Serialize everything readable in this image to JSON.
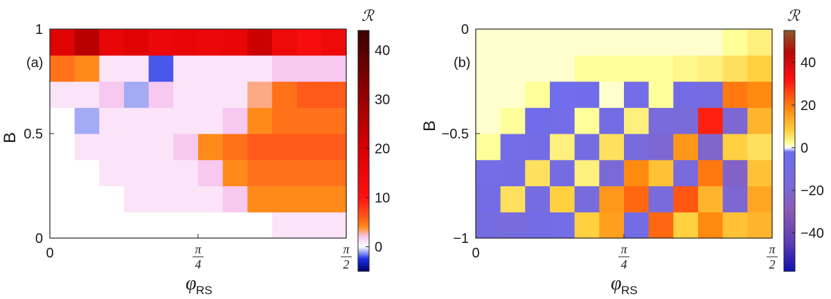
{
  "chart_data": [
    {
      "type": "heatmap",
      "panel_label": "(a)",
      "xlabel": "φ",
      "xlabel_sub": "RS",
      "ylabel": "B",
      "xlim": [
        0,
        1.5708
      ],
      "ylim": [
        0,
        1
      ],
      "xticks": [
        {
          "value": 0,
          "num": "0",
          "den": ""
        },
        {
          "value": 0.7854,
          "num": "π",
          "den": "4"
        },
        {
          "value": 1.5708,
          "num": "π",
          "den": "2"
        }
      ],
      "yticks": [
        {
          "value": 0,
          "label": "0"
        },
        {
          "value": 0.5,
          "label": "0.5"
        },
        {
          "value": 1,
          "label": "1"
        }
      ],
      "colorbar": {
        "label": "ℛ",
        "range": [
          -5,
          44
        ],
        "ticks": [
          0,
          10,
          20,
          30,
          40
        ],
        "stops": [
          {
            "v": -5,
            "c": "#00006e"
          },
          {
            "v": -2.5,
            "c": "#1a2ee6"
          },
          {
            "v": 0,
            "c": "#ffffff"
          },
          {
            "v": 2,
            "c": "#f7c8f0"
          },
          {
            "v": 4,
            "c": "#ff8a1a"
          },
          {
            "v": 6,
            "c": "#ff5a1a"
          },
          {
            "v": 10,
            "c": "#ff1010"
          },
          {
            "v": 20,
            "c": "#d80000"
          },
          {
            "v": 32,
            "c": "#8c0000"
          },
          {
            "v": 44,
            "c": "#3a0000"
          }
        ]
      },
      "grid": {
        "nx": 12,
        "ny": 8,
        "values": [
          [
            0,
            0,
            0,
            0,
            0,
            0,
            0,
            0,
            0,
            1,
            1,
            1
          ],
          [
            0,
            0,
            0,
            1,
            1,
            1,
            1,
            2,
            4,
            4,
            4,
            4
          ],
          [
            0,
            0,
            1,
            1,
            1,
            1,
            2,
            4,
            5,
            5,
            5,
            5
          ],
          [
            0,
            1,
            1,
            1,
            1,
            2,
            4,
            5,
            6,
            6,
            6,
            6
          ],
          [
            0,
            -1,
            1,
            1,
            1,
            1,
            1,
            2,
            4,
            5,
            5,
            5
          ],
          [
            1,
            1,
            2,
            -1,
            2,
            1,
            1,
            1,
            3,
            5,
            6,
            6
          ],
          [
            5,
            4,
            1,
            1,
            -2,
            1,
            1,
            1,
            1,
            2,
            2,
            2
          ],
          [
            18,
            25,
            16,
            18,
            15,
            16,
            15,
            16,
            22,
            14,
            12,
            14
          ]
        ]
      }
    },
    {
      "type": "heatmap",
      "panel_label": "(b)",
      "xlabel": "φ",
      "xlabel_sub": "RS",
      "ylabel": "B",
      "xlim": [
        0,
        1.5708
      ],
      "ylim": [
        -1,
        0
      ],
      "xticks": [
        {
          "value": 0,
          "num": "0",
          "den": ""
        },
        {
          "value": 0.7854,
          "num": "π",
          "den": "4"
        },
        {
          "value": 1.5708,
          "num": "π",
          "den": "2"
        }
      ],
      "yticks": [
        {
          "value": -1,
          "label": "−1"
        },
        {
          "value": -0.5,
          "label": "−0.5"
        },
        {
          "value": 0,
          "label": "0"
        }
      ],
      "colorbar": {
        "label": "ℛ",
        "range": [
          -58,
          55
        ],
        "ticks": [
          -40,
          -20,
          0,
          20,
          40
        ],
        "stops": [
          {
            "v": -58,
            "c": "#1010b4"
          },
          {
            "v": -45,
            "c": "#5a3cb4"
          },
          {
            "v": -30,
            "c": "#8a5ab4"
          },
          {
            "v": -18,
            "c": "#7a6ad8"
          },
          {
            "v": -2,
            "c": "#6e6ef0"
          },
          {
            "v": 0,
            "c": "#ffffff"
          },
          {
            "v": 2,
            "c": "#ffff9a"
          },
          {
            "v": 8,
            "c": "#ffd040"
          },
          {
            "v": 18,
            "c": "#ff8a10"
          },
          {
            "v": 32,
            "c": "#ff1010"
          },
          {
            "v": 45,
            "c": "#b40a0a"
          },
          {
            "v": 55,
            "c": "#8a5a2e"
          }
        ]
      },
      "grid": {
        "nx": 12,
        "ny": 8,
        "values": [
          [
            -12,
            -15,
            -10,
            -8,
            8,
            15,
            -10,
            22,
            8,
            18,
            10,
            12
          ],
          [
            -10,
            6,
            -12,
            8,
            -14,
            16,
            22,
            -16,
            24,
            12,
            -20,
            14
          ],
          [
            -8,
            -10,
            6,
            -12,
            4,
            -18,
            18,
            10,
            -16,
            20,
            -24,
            10
          ],
          [
            2,
            -8,
            -10,
            4,
            -12,
            6,
            -14,
            -20,
            16,
            -22,
            8,
            6
          ],
          [
            1,
            2,
            -6,
            -8,
            2,
            -10,
            4,
            -16,
            -18,
            30,
            -20,
            12
          ],
          [
            1,
            1,
            2,
            -4,
            -6,
            1,
            -8,
            2,
            -10,
            -12,
            20,
            18
          ],
          [
            1,
            1,
            1,
            1,
            2,
            2,
            2,
            2,
            3,
            4,
            6,
            8
          ],
          [
            1,
            1,
            1,
            1,
            1,
            1,
            1,
            1,
            1,
            1,
            2,
            4
          ]
        ]
      }
    }
  ]
}
